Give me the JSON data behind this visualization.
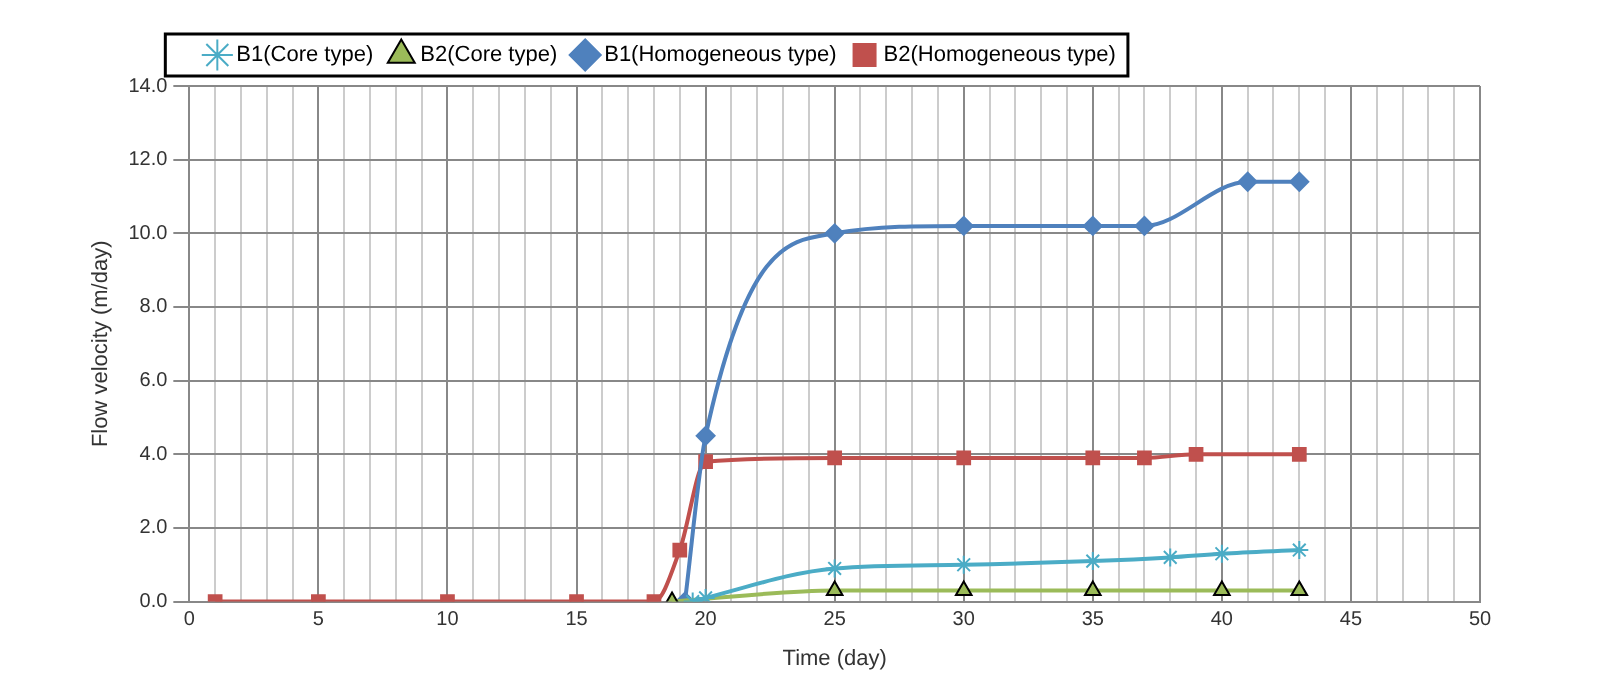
{
  "chart_data": {
    "type": "line",
    "xlabel": "Time (day)",
    "ylabel": "Flow velocity (m/day)",
    "xlim": [
      0,
      50
    ],
    "ylim": [
      0,
      14
    ],
    "xticks": [
      0,
      {
        "value": 1,
        "label": null
      },
      {
        "value": 2,
        "label": null
      },
      {
        "value": 3,
        "label": null
      },
      {
        "value": 4,
        "label": null
      },
      5,
      {
        "value": 6,
        "label": null
      },
      {
        "value": 7,
        "label": null
      },
      {
        "value": 8,
        "label": null
      },
      {
        "value": 9,
        "label": null
      },
      10,
      {
        "value": 11,
        "label": null
      },
      {
        "value": 12,
        "label": null
      },
      {
        "value": 13,
        "label": null
      },
      {
        "value": 14,
        "label": null
      },
      15,
      {
        "value": 16,
        "label": null
      },
      {
        "value": 17,
        "label": null
      },
      {
        "value": 18,
        "label": null
      },
      {
        "value": 19,
        "label": null
      },
      20,
      {
        "value": 21,
        "label": null
      },
      {
        "value": 22,
        "label": null
      },
      {
        "value": 23,
        "label": null
      },
      {
        "value": 24,
        "label": null
      },
      25,
      {
        "value": 26,
        "label": null
      },
      {
        "value": 27,
        "label": null
      },
      {
        "value": 28,
        "label": null
      },
      {
        "value": 29,
        "label": null
      },
      30,
      {
        "value": 31,
        "label": null
      },
      {
        "value": 32,
        "label": null
      },
      {
        "value": 33,
        "label": null
      },
      {
        "value": 34,
        "label": null
      },
      35,
      {
        "value": 36,
        "label": null
      },
      {
        "value": 37,
        "label": null
      },
      {
        "value": 38,
        "label": null
      },
      {
        "value": 39,
        "label": null
      },
      40,
      {
        "value": 41,
        "label": null
      },
      {
        "value": 42,
        "label": null
      },
      {
        "value": 43,
        "label": null
      },
      {
        "value": 44,
        "label": null
      },
      45,
      {
        "value": 46,
        "label": null
      },
      {
        "value": 47,
        "label": null
      },
      {
        "value": 48,
        "label": null
      },
      {
        "value": 49,
        "label": null
      },
      50
    ],
    "yticks": [
      {
        "value": 0,
        "label": "0.0"
      },
      {
        "value": 2,
        "label": "2.0"
      },
      {
        "value": 4,
        "label": "4.0"
      },
      {
        "value": 6,
        "label": "6.0"
      },
      {
        "value": 8,
        "label": "8.0"
      },
      {
        "value": 10,
        "label": "10.0"
      },
      {
        "value": 12,
        "label": "12.0"
      },
      {
        "value": 14,
        "label": "14.0"
      }
    ],
    "grid": true,
    "legend": "top left",
    "line_style": "solid",
    "series": [
      {
        "name": "B1(Core type)",
        "color": "#4bacc6",
        "marker": "cross",
        "x": [
          19.5,
          20,
          25,
          30,
          35,
          38,
          40,
          43
        ],
        "values": [
          0,
          0.1,
          0.9,
          1.0,
          1.1,
          1.2,
          1.3,
          1.4
        ]
      },
      {
        "name": "B2(Core type)",
        "color": "#9bbb59",
        "marker": "triangle",
        "x": [
          18.7,
          25,
          30,
          35,
          40,
          43
        ],
        "values": [
          0,
          0.3,
          0.3,
          0.3,
          0.3,
          0.3
        ]
      },
      {
        "name": "B1(Homogeneous type)",
        "color": "#4f81bd",
        "marker": "diamond",
        "x": [
          19.2,
          20,
          25,
          30,
          35,
          37,
          41,
          43
        ],
        "values": [
          0,
          4.5,
          10.0,
          10.2,
          10.2,
          10.2,
          11.4,
          11.4
        ]
      },
      {
        "name": "B2(Homogeneous type)",
        "color": "#c0504d",
        "marker": "square",
        "x": [
          1,
          5,
          10,
          15,
          18,
          19,
          20,
          25,
          30,
          35,
          37,
          39,
          43
        ],
        "values": [
          0,
          0,
          0,
          0,
          0,
          1.4,
          3.8,
          3.9,
          3.9,
          3.9,
          3.9,
          4.0,
          4.0
        ]
      }
    ]
  }
}
